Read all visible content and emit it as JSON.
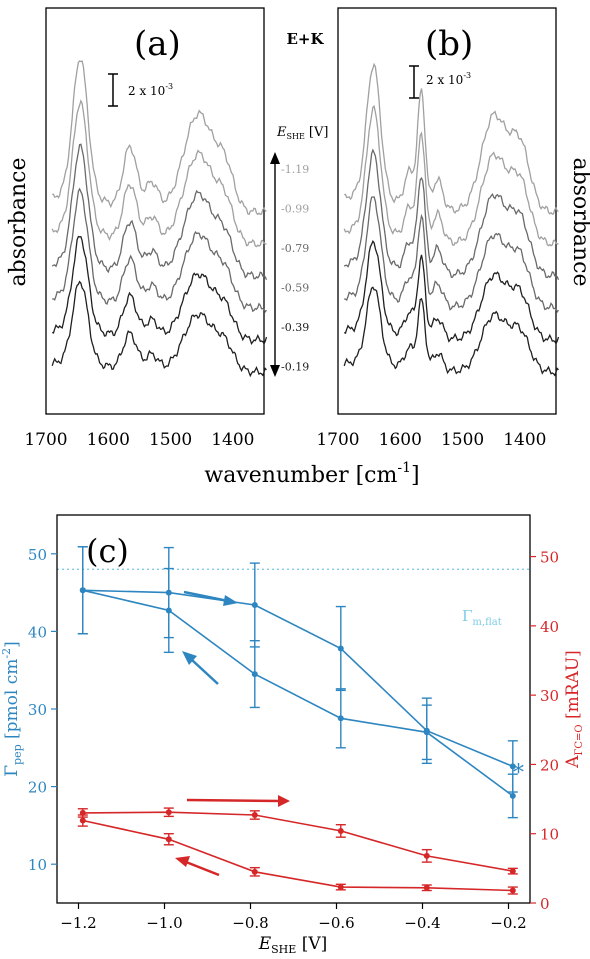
{
  "chart_data": [
    {
      "type": "line",
      "panel_label": "(a)",
      "ylabel": "absorbance",
      "xlabel": "wavenumber [cm-1]",
      "xlabel_text": "wavenumber [cm",
      "xlabel_sup": "-1",
      "xlabel_close": "]",
      "xlim": [
        1700,
        1350
      ],
      "xticks": [
        "1700",
        "1600",
        "1500",
        "1400"
      ],
      "scalebar": {
        "text": "2 x 10",
        "sup": "-3"
      },
      "series": [
        {
          "E": "-0.19",
          "color": "#202020",
          "offset": 0
        },
        {
          "E": "-0.39",
          "color": "#202020",
          "offset": 1
        },
        {
          "E": "-0.59",
          "color": "#6a6a6a",
          "offset": 2
        },
        {
          "E": "-0.79",
          "color": "#6a6a6a",
          "offset": 3
        },
        {
          "E": "-0.99",
          "color": "#a0a0a0",
          "offset": 4
        },
        {
          "E": "-1.19",
          "color": "#a0a0a0",
          "offset": 5
        }
      ]
    },
    {
      "type": "line",
      "panel_label": "(b)",
      "ylabel": "absorbance",
      "condition": "E+K",
      "xlim": [
        1700,
        1350
      ],
      "xticks": [
        "1700",
        "1600",
        "1500",
        "1400"
      ],
      "scalebar": {
        "text": "2 x 10",
        "sup": "-3"
      },
      "potential_axis": {
        "title": "E",
        "title_sub": "SHE",
        "title_unit": " [V]",
        "labels": [
          "-1.19",
          "-0.99",
          "-0.79",
          "-0.59",
          "-0.39",
          "-0.19"
        ],
        "label_colors": [
          "#a0a0a0",
          "#a0a0a0",
          "#6a6a6a",
          "#6a6a6a",
          "#202020",
          "#202020"
        ]
      }
    },
    {
      "type": "line",
      "panel_label": "(c)",
      "xlabel": "E",
      "xlabel_sub": "SHE",
      "xlabel_unit": " [V]",
      "xlim": [
        -1.25,
        -0.15
      ],
      "xticks": [
        -1.2,
        -1.0,
        -0.8,
        -0.6,
        -0.4,
        -0.2
      ],
      "xtick_labels": [
        "−1.2",
        "−1.0",
        "−0.8",
        "−0.6",
        "−0.4",
        "−0.2"
      ],
      "ylabel_left": "Γpep [pmol cm-2]",
      "ylabel_left_main": "Γ",
      "ylabel_left_sub": "pep",
      "ylabel_left_unit": " [pmol cm",
      "ylabel_left_sup": "-2",
      "ylabel_left_close": "]",
      "ylim_left": [
        5,
        55
      ],
      "yticks_left": [
        10,
        20,
        30,
        40,
        50
      ],
      "ylabel_right": "AΓC=O [mRAU]",
      "ylabel_right_main": "A",
      "ylabel_right_sub": "ΓC=O",
      "ylabel_right_unit": " [mRAU]",
      "ylim_right": [
        0,
        56
      ],
      "yticks_right": [
        0,
        10,
        20,
        30,
        40,
        50
      ],
      "hline": {
        "value": 48,
        "label": "Γm,flat",
        "label_main": "Γ",
        "label_sub": "m,flat",
        "color": "#7fcbe4"
      },
      "marker": "*",
      "colors": {
        "blue": "#2e86c1",
        "red": "#d62728"
      },
      "series": [
        {
          "name": "Γpep forward",
          "axis": "left",
          "color": "#2e86c1",
          "x": [
            -1.19,
            -0.99,
            -0.79,
            -0.59,
            -0.39,
            -0.19
          ],
          "y": [
            45.3,
            42.7,
            34.5,
            28.8,
            27.0,
            18.8
          ],
          "err": [
            5.6,
            5.4,
            4.3,
            3.8,
            3.5,
            2.8
          ]
        },
        {
          "name": "Γpep backward",
          "axis": "left",
          "color": "#2e86c1",
          "x": [
            -0.19,
            -0.39,
            -0.59,
            -0.79,
            -0.99,
            -1.19
          ],
          "y": [
            22.6,
            27.2,
            37.8,
            43.4,
            45.0,
            45.3
          ],
          "err": [
            3.3,
            4.2,
            5.4,
            5.4,
            5.8,
            5.6
          ]
        },
        {
          "name": "A forward",
          "axis": "right",
          "color": "#d62728",
          "x": [
            -1.19,
            -0.99,
            -0.79,
            -0.59,
            -0.39,
            -0.19
          ],
          "y": [
            11.9,
            9.2,
            4.5,
            2.3,
            2.2,
            1.8
          ],
          "err": [
            0.8,
            0.8,
            0.6,
            0.4,
            0.4,
            0.5
          ]
        },
        {
          "name": "A backward",
          "axis": "right",
          "color": "#d62728",
          "x": [
            -0.19,
            -0.39,
            -0.59,
            -0.79,
            -0.99,
            -1.19
          ],
          "y": [
            4.6,
            6.8,
            10.4,
            12.7,
            13.1,
            13.0
          ],
          "err": [
            0.4,
            0.9,
            0.9,
            0.6,
            0.6,
            0.6
          ]
        }
      ]
    }
  ]
}
